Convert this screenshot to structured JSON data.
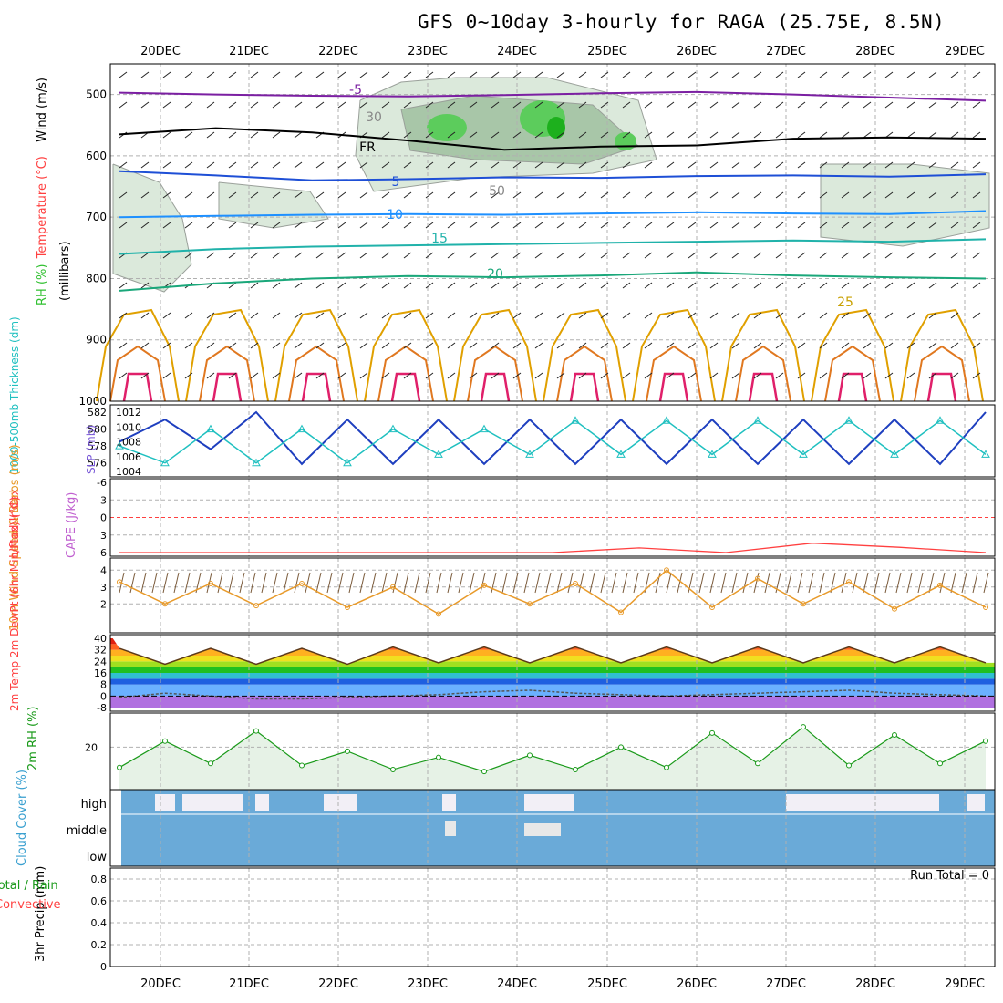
{
  "title": "GFS 0~10day 3-hourly for RAGA (25.75E, 8.5N)",
  "chart_data": [
    {
      "type": "line",
      "panel": "upper-air",
      "ylabel_parts": [
        "RH (%)",
        "Temperature (°C)",
        "Wind (m/s)"
      ],
      "ylabel2": "(millibars)",
      "x": [
        "20DEC",
        "21DEC",
        "22DEC",
        "23DEC",
        "24DEC",
        "25DEC",
        "26DEC",
        "27DEC",
        "28DEC",
        "29DEC"
      ],
      "y_ticks": [
        500,
        600,
        700,
        800,
        900,
        1000
      ],
      "ylim": [
        450,
        1000
      ],
      "annotations": [
        "-5",
        "FR",
        "5",
        "10",
        "15",
        "20",
        "25",
        "30",
        "50"
      ],
      "series": [
        {
          "name": "-5",
          "color": "#7b1fa2",
          "values": [
            497,
            500,
            502,
            503,
            501,
            498,
            496,
            500,
            505,
            510
          ]
        },
        {
          "name": "freezing",
          "color": "#000000",
          "values": [
            565,
            555,
            562,
            575,
            590,
            585,
            583,
            572,
            570,
            572
          ]
        },
        {
          "name": "5",
          "color": "#1e4fd6",
          "values": [
            625,
            632,
            640,
            638,
            635,
            636,
            633,
            632,
            634,
            630
          ]
        },
        {
          "name": "10",
          "color": "#1e90ff",
          "values": [
            700,
            698,
            696,
            695,
            696,
            694,
            692,
            694,
            695,
            690
          ]
        },
        {
          "name": "15",
          "color": "#20b2aa",
          "values": [
            760,
            752,
            748,
            746,
            744,
            742,
            740,
            738,
            740,
            736
          ]
        },
        {
          "name": "20",
          "color": "#1aa77a",
          "values": [
            820,
            808,
            800,
            796,
            798,
            795,
            790,
            795,
            798,
            800
          ]
        }
      ]
    },
    {
      "type": "line",
      "panel": "thickness-slp",
      "ylabel_left": "1000-500mb Thickness (dm)",
      "ylabel_right": "SLP (mb)",
      "y_ticks_left": [
        576,
        578,
        580,
        582
      ],
      "y_ticks_right": [
        1004,
        1006,
        1008,
        1010,
        1012
      ],
      "series": [
        {
          "name": "SLP (mb)",
          "color": "#1e3fbf",
          "values": [
            1008,
            1011,
            1007,
            1012,
            1005,
            1011,
            1005,
            1011,
            1005,
            1011,
            1005,
            1011,
            1005,
            1011,
            1005,
            1011,
            1005,
            1011,
            1005,
            1012
          ]
        },
        {
          "name": "Thickness (dm)",
          "color": "#20c0c0",
          "values": [
            578,
            576,
            580,
            576,
            580,
            576,
            580,
            577,
            580,
            577,
            581,
            577,
            581,
            577,
            581,
            577,
            581,
            577,
            581,
            577
          ]
        }
      ]
    },
    {
      "type": "line",
      "panel": "stability",
      "ylabel_left": "Lifted Index",
      "ylabel_right": "CAPE (J/kg)",
      "y_ticks": [
        "-6",
        "-3",
        "0",
        "3",
        "6"
      ],
      "series": [
        {
          "name": "Lifted Index",
          "color": "#ff4040",
          "values": [
            6,
            6,
            6,
            6,
            6,
            6,
            5.2,
            6,
            4.4,
            5.1,
            6
          ]
        }
      ]
    },
    {
      "type": "line",
      "panel": "10m-wind",
      "ylabel": "10m Wind Speed & Barbs (m/s)",
      "y_ticks": [
        2,
        3,
        4
      ],
      "series": [
        {
          "name": "10m Wind Speed",
          "color": "#e89a2a",
          "values": [
            3.3,
            2,
            3.2,
            1.9,
            3.2,
            1.8,
            3.0,
            1.4,
            3.1,
            2.0,
            3.2,
            1.5,
            4.0,
            1.8,
            3.5,
            2.0,
            3.3,
            1.7,
            3.1,
            1.8
          ]
        }
      ]
    },
    {
      "type": "line",
      "panel": "2m-temp",
      "ylabel": "2m Temp 2m DewPt (6hr Min/Max) (°C)",
      "y_ticks": [
        "-8",
        "0",
        "8",
        "16",
        "24",
        "32",
        "40"
      ],
      "series": [
        {
          "name": "2m Temp",
          "color": "#5a3a1a",
          "values": [
            33,
            22,
            33,
            22,
            33,
            22,
            34,
            23,
            34,
            23,
            34,
            23,
            34,
            23,
            34,
            23,
            34,
            23,
            34,
            23
          ]
        },
        {
          "name": "2m DewPt",
          "color": "#555555",
          "values": [
            -1,
            2,
            0,
            -2,
            -2,
            -1,
            0,
            1,
            3,
            4,
            2,
            1,
            0,
            1,
            2,
            3,
            4,
            2,
            1,
            0
          ]
        }
      ]
    },
    {
      "type": "line",
      "panel": "2m-rh",
      "ylabel": "2m RH (%)",
      "y_ticks": [
        20
      ],
      "series": [
        {
          "name": "2m RH",
          "color": "#1a9a1a",
          "values": [
            10,
            23,
            12,
            28,
            11,
            18,
            9,
            15,
            8,
            16,
            9,
            20,
            10,
            27,
            12,
            30,
            11,
            26,
            12,
            23
          ]
        }
      ]
    },
    {
      "type": "bar",
      "panel": "cloud-cover",
      "ylabel": "Cloud Cover (%)",
      "levels": [
        "high",
        "middle",
        "low"
      ]
    },
    {
      "type": "bar",
      "panel": "precip",
      "ylabel_parts": [
        "Total / Rain",
        "Convective"
      ],
      "ylabel": "3hr Precip (mm)",
      "y_ticks": [
        "0",
        "0.2",
        "0.4",
        "0.6",
        "0.8"
      ],
      "annotation": "Run Total = 0",
      "x": [
        "20DEC",
        "21DEC",
        "22DEC",
        "23DEC",
        "24DEC",
        "25DEC",
        "26DEC",
        "27DEC",
        "28DEC",
        "29DEC"
      ]
    }
  ]
}
